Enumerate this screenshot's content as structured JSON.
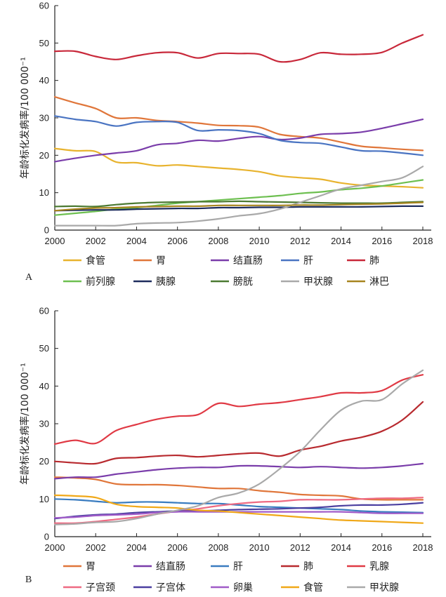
{
  "chart_data": [
    {
      "type": "line",
      "panel_label": "A",
      "ylabel": "年龄标化发病率/100 000⁻¹",
      "xlim": [
        2000,
        2018
      ],
      "ylim": [
        0,
        60
      ],
      "xticks": [
        2000,
        2002,
        2004,
        2006,
        2008,
        2010,
        2012,
        2014,
        2016,
        2018
      ],
      "yticks": [
        0,
        10,
        20,
        30,
        40,
        50,
        60
      ],
      "legend_position": "bottom",
      "x": [
        2000,
        2001,
        2002,
        2003,
        2004,
        2005,
        2006,
        2007,
        2008,
        2009,
        2010,
        2011,
        2012,
        2013,
        2014,
        2015,
        2016,
        2017,
        2018
      ],
      "series": [
        {
          "name": "食管",
          "color": "#E8B32E",
          "values": [
            21.8,
            21.2,
            21.0,
            18.2,
            18.0,
            17.2,
            17.4,
            17.0,
            16.6,
            16.2,
            15.6,
            14.5,
            14.0,
            13.6,
            12.6,
            12.0,
            11.8,
            11.6,
            11.3
          ]
        },
        {
          "name": "胃",
          "color": "#E0763A",
          "values": [
            35.6,
            34.0,
            32.5,
            30.0,
            30.0,
            29.3,
            29.0,
            28.6,
            28.0,
            27.9,
            27.5,
            25.6,
            25.0,
            24.6,
            23.5,
            22.4,
            22.0,
            21.6,
            21.3
          ]
        },
        {
          "name": "结直肠",
          "color": "#7A3DAA",
          "values": [
            18.3,
            19.2,
            20.0,
            20.6,
            21.2,
            22.8,
            23.2,
            24.0,
            23.8,
            24.5,
            25.0,
            24.2,
            24.6,
            25.6,
            25.8,
            26.2,
            27.2,
            28.4,
            29.6
          ]
        },
        {
          "name": "肝",
          "color": "#4A74C2",
          "values": [
            30.5,
            29.6,
            29.0,
            27.8,
            28.8,
            29.0,
            28.8,
            26.6,
            26.8,
            26.6,
            25.8,
            24.0,
            23.4,
            23.2,
            22.2,
            21.2,
            21.1,
            20.6,
            20.0
          ]
        },
        {
          "name": "肺",
          "color": "#C8283A",
          "values": [
            47.8,
            47.8,
            46.4,
            45.6,
            46.6,
            47.4,
            47.4,
            46.0,
            47.2,
            47.2,
            47.0,
            45.0,
            45.6,
            47.4,
            47.0,
            47.0,
            47.5,
            50.0,
            52.2
          ]
        },
        {
          "name": "前列腺",
          "color": "#6DBF50",
          "values": [
            4.0,
            4.5,
            5.0,
            5.6,
            6.0,
            6.6,
            7.2,
            7.6,
            8.0,
            8.4,
            8.8,
            9.2,
            9.8,
            10.2,
            10.8,
            11.2,
            11.8,
            12.6,
            13.4
          ]
        },
        {
          "name": "胰腺",
          "color": "#1E2D5E",
          "values": [
            5.2,
            5.3,
            5.4,
            5.4,
            5.6,
            5.7,
            5.8,
            5.8,
            6.0,
            6.0,
            6.1,
            6.1,
            6.2,
            6.2,
            6.2,
            6.2,
            6.3,
            6.4,
            6.4
          ]
        },
        {
          "name": "膀胱",
          "color": "#4C7A32",
          "values": [
            6.3,
            6.4,
            6.3,
            6.8,
            7.2,
            7.4,
            7.5,
            7.6,
            7.6,
            7.7,
            7.6,
            7.5,
            7.4,
            7.3,
            7.2,
            7.2,
            7.2,
            7.4,
            7.6
          ]
        },
        {
          "name": "甲状腺",
          "color": "#A9A9A9",
          "values": [
            1.2,
            1.2,
            1.2,
            1.2,
            1.7,
            1.9,
            2.0,
            2.4,
            3.0,
            3.8,
            4.4,
            5.6,
            7.4,
            9.2,
            11.0,
            12.0,
            13.0,
            14.0,
            17.0
          ]
        },
        {
          "name": "淋巴",
          "color": "#A7851F",
          "values": [
            5.2,
            5.6,
            5.9,
            6.0,
            6.2,
            6.3,
            6.4,
            6.4,
            6.6,
            6.6,
            6.6,
            6.6,
            6.7,
            6.7,
            6.8,
            6.9,
            7.0,
            7.2,
            7.4
          ]
        }
      ]
    },
    {
      "type": "line",
      "panel_label": "B",
      "ylabel": "年龄标化发病率/100 000⁻¹",
      "xlim": [
        2000,
        2018
      ],
      "ylim": [
        0,
        60
      ],
      "xticks": [
        2000,
        2002,
        2004,
        2006,
        2008,
        2010,
        2012,
        2014,
        2016,
        2018
      ],
      "yticks": [
        0,
        10,
        20,
        30,
        40,
        50,
        60
      ],
      "legend_position": "bottom",
      "x": [
        2000,
        2001,
        2002,
        2003,
        2004,
        2005,
        2006,
        2007,
        2008,
        2009,
        2010,
        2011,
        2012,
        2013,
        2014,
        2015,
        2016,
        2017,
        2018
      ],
      "series": [
        {
          "name": "胃",
          "color": "#E0763A",
          "values": [
            15.8,
            15.6,
            15.2,
            14.0,
            13.8,
            13.8,
            13.6,
            13.2,
            12.8,
            12.8,
            12.2,
            11.8,
            11.2,
            11.0,
            10.8,
            10.0,
            9.8,
            9.8,
            9.8
          ]
        },
        {
          "name": "结直肠",
          "color": "#7A3DAA",
          "values": [
            15.4,
            15.8,
            15.8,
            16.6,
            17.2,
            17.8,
            18.2,
            18.4,
            18.4,
            18.8,
            18.8,
            18.6,
            18.4,
            18.6,
            18.4,
            18.2,
            18.4,
            18.8,
            19.4
          ]
        },
        {
          "name": "肝",
          "color": "#3A7CC0",
          "values": [
            10.0,
            9.8,
            9.4,
            9.0,
            9.2,
            9.2,
            9.0,
            8.8,
            8.8,
            8.4,
            8.0,
            7.8,
            7.6,
            7.4,
            7.2,
            6.8,
            6.6,
            6.5,
            6.4
          ]
        },
        {
          "name": "肺",
          "color": "#B82A2F",
          "values": [
            20.0,
            19.6,
            19.4,
            20.8,
            21.0,
            21.4,
            21.6,
            21.2,
            21.6,
            22.0,
            22.2,
            21.4,
            23.0,
            24.0,
            25.4,
            26.4,
            28.0,
            31.0,
            35.8
          ]
        },
        {
          "name": "乳腺",
          "color": "#E03A45",
          "values": [
            24.6,
            25.6,
            24.8,
            28.2,
            29.8,
            31.2,
            32.0,
            32.4,
            35.4,
            34.6,
            35.2,
            35.6,
            36.4,
            37.2,
            38.2,
            38.2,
            38.8,
            41.6,
            43.0
          ]
        },
        {
          "name": "子宫颈",
          "color": "#EE6A82",
          "values": [
            3.6,
            3.6,
            4.0,
            4.6,
            5.2,
            6.0,
            6.8,
            7.4,
            8.2,
            8.8,
            9.2,
            9.4,
            9.8,
            9.8,
            9.8,
            10.0,
            10.2,
            10.2,
            10.4
          ]
        },
        {
          "name": "子宫体",
          "color": "#4B3FA0",
          "values": [
            4.8,
            5.4,
            5.8,
            6.0,
            6.4,
            6.6,
            6.8,
            6.8,
            7.0,
            7.2,
            7.3,
            7.4,
            7.6,
            7.8,
            8.2,
            8.4,
            8.4,
            8.6,
            9.0
          ]
        },
        {
          "name": "卵巢",
          "color": "#A05BC8",
          "values": [
            5.0,
            5.2,
            5.6,
            5.8,
            6.0,
            6.4,
            6.6,
            6.6,
            6.6,
            6.6,
            6.6,
            6.6,
            6.6,
            6.6,
            6.6,
            6.4,
            6.2,
            6.2,
            6.2
          ]
        },
        {
          "name": "食管",
          "color": "#F0A818",
          "values": [
            11.0,
            10.8,
            10.4,
            8.6,
            8.0,
            7.8,
            7.6,
            7.0,
            6.8,
            6.4,
            6.0,
            5.6,
            5.2,
            4.8,
            4.4,
            4.2,
            4.0,
            3.8,
            3.6
          ]
        },
        {
          "name": "甲状腺",
          "color": "#A9A9A9",
          "values": [
            3.2,
            3.4,
            3.8,
            4.0,
            4.8,
            6.0,
            7.0,
            8.2,
            10.4,
            11.6,
            14.0,
            18.0,
            22.6,
            28.4,
            33.6,
            36.0,
            36.4,
            40.6,
            44.2
          ]
        }
      ]
    }
  ]
}
